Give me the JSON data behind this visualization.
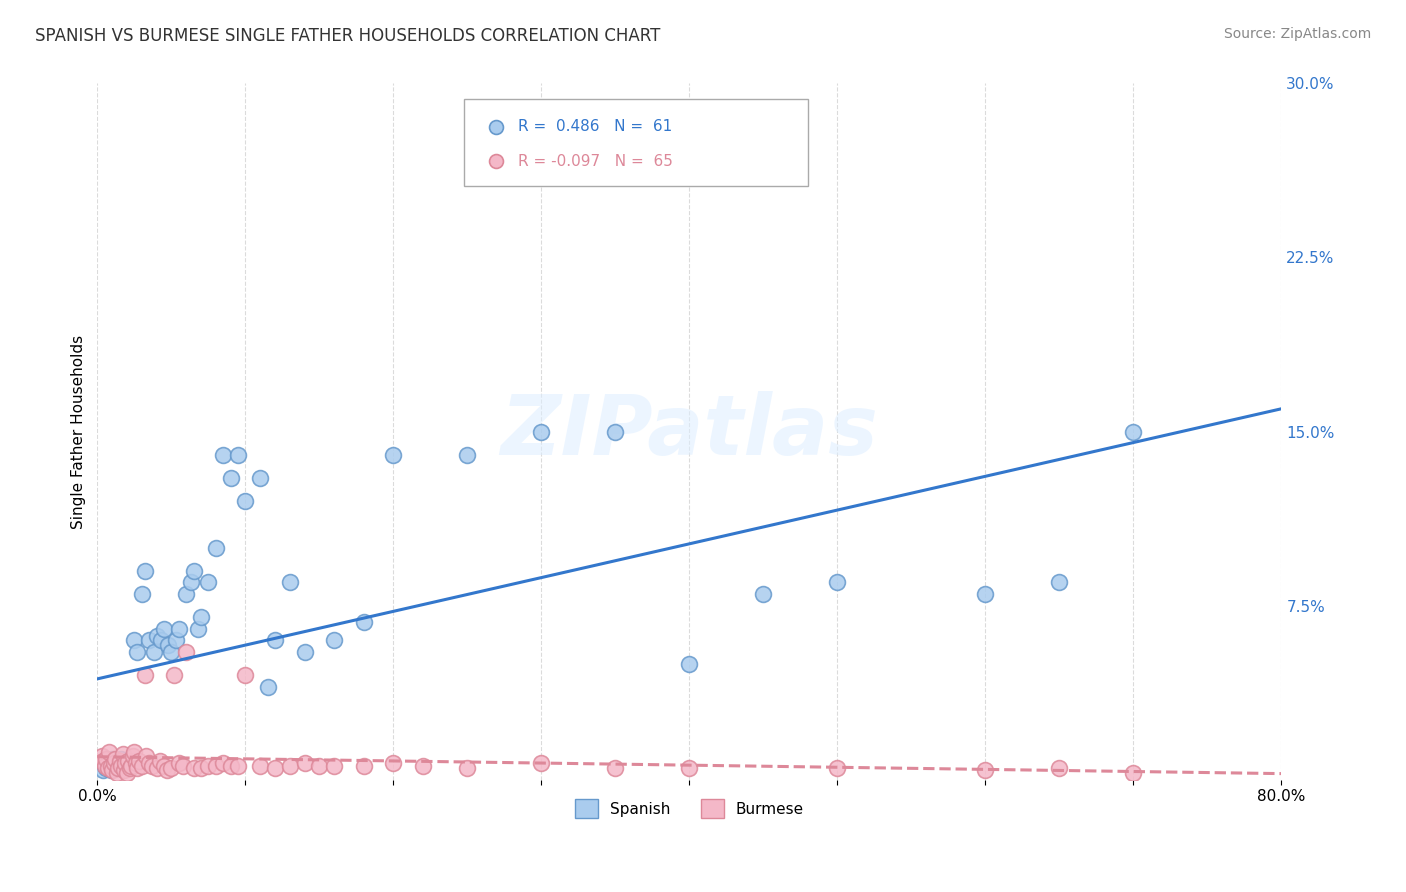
{
  "title": "SPANISH VS BURMESE SINGLE FATHER HOUSEHOLDS CORRELATION CHART",
  "source": "Source: ZipAtlas.com",
  "ylabel": "Single Father Households",
  "xlim": [
    0.0,
    0.8
  ],
  "ylim": [
    0.0,
    0.3
  ],
  "yticks_right": [
    0.075,
    0.15,
    0.225,
    0.3
  ],
  "ytick_labels_right": [
    "7.5%",
    "15.0%",
    "22.5%",
    "30.0%"
  ],
  "spanish_color": "#aaccee",
  "burmese_color": "#f4b8c8",
  "spanish_edge": "#6699cc",
  "burmese_edge": "#dd8899",
  "trend_spanish_color": "#3377cc",
  "trend_burmese_color": "#dd8899",
  "spanish_R": 0.486,
  "spanish_N": 61,
  "burmese_R": -0.097,
  "burmese_N": 65,
  "watermark": "ZIPatlas",
  "legend_label_spanish": "Spanish",
  "legend_label_burmese": "Burmese",
  "background_color": "#ffffff",
  "grid_color": "#cccccc",
  "spanish_x": [
    0.004,
    0.005,
    0.006,
    0.007,
    0.008,
    0.009,
    0.01,
    0.011,
    0.012,
    0.013,
    0.014,
    0.015,
    0.016,
    0.017,
    0.018,
    0.019,
    0.02,
    0.021,
    0.022,
    0.023,
    0.025,
    0.027,
    0.03,
    0.032,
    0.035,
    0.038,
    0.04,
    0.043,
    0.045,
    0.048,
    0.05,
    0.053,
    0.055,
    0.06,
    0.063,
    0.065,
    0.068,
    0.07,
    0.075,
    0.08,
    0.085,
    0.09,
    0.095,
    0.1,
    0.11,
    0.115,
    0.12,
    0.13,
    0.14,
    0.16,
    0.18,
    0.2,
    0.25,
    0.3,
    0.35,
    0.4,
    0.45,
    0.5,
    0.6,
    0.65,
    0.7
  ],
  "spanish_y": [
    0.004,
    0.006,
    0.005,
    0.007,
    0.008,
    0.004,
    0.009,
    0.006,
    0.005,
    0.007,
    0.008,
    0.005,
    0.009,
    0.006,
    0.007,
    0.005,
    0.006,
    0.007,
    0.008,
    0.006,
    0.06,
    0.055,
    0.08,
    0.09,
    0.06,
    0.055,
    0.062,
    0.06,
    0.065,
    0.058,
    0.055,
    0.06,
    0.065,
    0.08,
    0.085,
    0.09,
    0.065,
    0.07,
    0.085,
    0.1,
    0.14,
    0.13,
    0.14,
    0.12,
    0.13,
    0.04,
    0.06,
    0.085,
    0.055,
    0.06,
    0.068,
    0.14,
    0.14,
    0.15,
    0.15,
    0.05,
    0.08,
    0.085,
    0.08,
    0.085,
    0.15
  ],
  "burmese_x": [
    0.003,
    0.004,
    0.005,
    0.006,
    0.007,
    0.008,
    0.009,
    0.01,
    0.011,
    0.012,
    0.013,
    0.014,
    0.015,
    0.016,
    0.017,
    0.018,
    0.019,
    0.02,
    0.021,
    0.022,
    0.023,
    0.024,
    0.025,
    0.026,
    0.027,
    0.028,
    0.03,
    0.032,
    0.033,
    0.035,
    0.037,
    0.04,
    0.042,
    0.045,
    0.047,
    0.05,
    0.052,
    0.055,
    0.058,
    0.06,
    0.065,
    0.07,
    0.075,
    0.08,
    0.085,
    0.09,
    0.095,
    0.1,
    0.11,
    0.12,
    0.13,
    0.14,
    0.15,
    0.16,
    0.18,
    0.2,
    0.22,
    0.25,
    0.3,
    0.35,
    0.4,
    0.5,
    0.6,
    0.65,
    0.7
  ],
  "burmese_y": [
    0.01,
    0.008,
    0.006,
    0.009,
    0.005,
    0.012,
    0.006,
    0.004,
    0.007,
    0.009,
    0.003,
    0.005,
    0.008,
    0.006,
    0.011,
    0.004,
    0.007,
    0.003,
    0.008,
    0.005,
    0.006,
    0.01,
    0.012,
    0.007,
    0.005,
    0.008,
    0.006,
    0.045,
    0.01,
    0.007,
    0.006,
    0.005,
    0.008,
    0.006,
    0.004,
    0.005,
    0.045,
    0.007,
    0.006,
    0.055,
    0.005,
    0.005,
    0.006,
    0.006,
    0.007,
    0.006,
    0.006,
    0.045,
    0.006,
    0.005,
    0.006,
    0.007,
    0.006,
    0.006,
    0.006,
    0.007,
    0.006,
    0.005,
    0.007,
    0.005,
    0.005,
    0.005,
    0.004,
    0.005,
    0.003
  ]
}
